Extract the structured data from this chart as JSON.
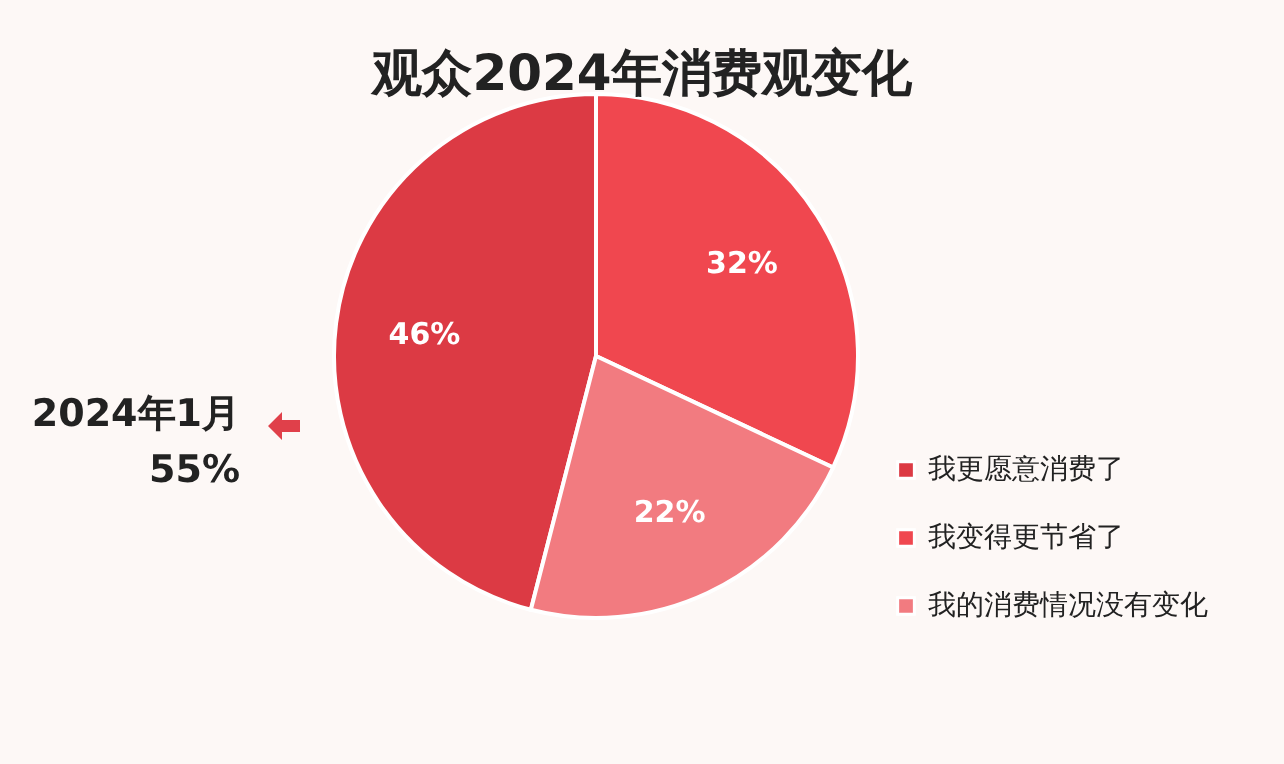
{
  "chart_data": {
    "type": "pie",
    "title": "观众2024年消费观变化",
    "categories": [
      "我更愿意消费了",
      "我变得更节省了",
      "我的消费情况没有变化"
    ],
    "values": [
      46,
      32,
      22
    ],
    "colors": [
      "#dc3a44",
      "#f0474f",
      "#f27b80"
    ],
    "value_labels": [
      "46%",
      "32%",
      "22%"
    ],
    "legend": "right",
    "annotations": [
      "2024年1月",
      "55%"
    ]
  }
}
